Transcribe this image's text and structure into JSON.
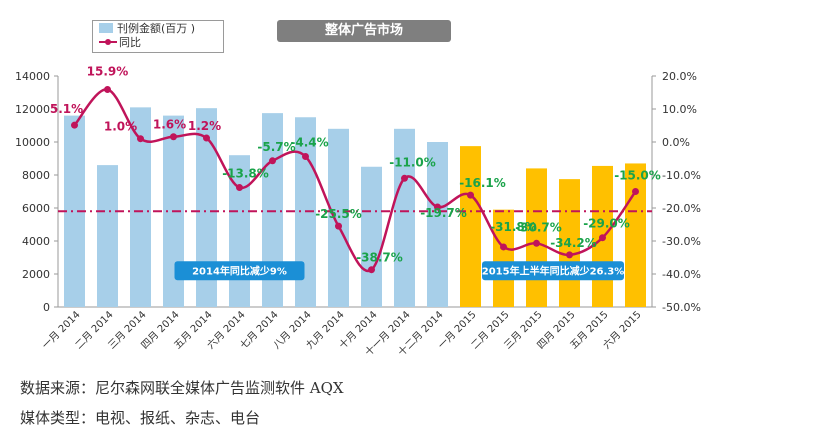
{
  "chart_data": {
    "type": "bar+line",
    "title": "整体广告市场",
    "categories": [
      "一月 2014",
      "二月 2014",
      "三月 2014",
      "四月 2014",
      "五月 2014",
      "六月 2014",
      "七月 2014",
      "八月 2014",
      "九月 2014",
      "十月 2014",
      "十一月 2014",
      "十二月 2014",
      "一月 2015",
      "二月 2015",
      "三月 2015",
      "四月 2015",
      "五月 2015",
      "六月 2015"
    ],
    "series": [
      {
        "name": "刊例金额(百万 )",
        "type": "bar",
        "axis": "left",
        "values": [
          11600,
          8600,
          12100,
          11600,
          12050,
          9200,
          11750,
          11500,
          10800,
          8500,
          10800,
          10000,
          9750,
          5900,
          8400,
          7750,
          8550,
          8700
        ],
        "colors": [
          "#a7cfe9",
          "#a7cfe9",
          "#a7cfe9",
          "#a7cfe9",
          "#a7cfe9",
          "#a7cfe9",
          "#a7cfe9",
          "#a7cfe9",
          "#a7cfe9",
          "#a7cfe9",
          "#a7cfe9",
          "#a7cfe9",
          "#ffc000",
          "#ffc000",
          "#ffc000",
          "#ffc000",
          "#ffc000",
          "#ffc000"
        ]
      },
      {
        "name": "同比",
        "type": "line",
        "axis": "right",
        "color": "#c0145a",
        "values": [
          5.1,
          15.9,
          1.0,
          1.6,
          1.2,
          -13.8,
          -5.7,
          -4.4,
          -25.5,
          -38.7,
          -11.0,
          -19.7,
          -16.1,
          -31.8,
          -30.7,
          -34.2,
          -29.0,
          -15.0
        ],
        "labels": [
          "5.1%",
          "15.9%",
          "1.0%",
          "1.6%",
          "1.2%",
          "-13.8%",
          "-5.7%",
          "-4.4%",
          "-25.5%",
          "-38.7%",
          "-11.0%",
          "-19.7%",
          "-16.1%",
          "-31.8%",
          "-30.7%",
          "-34.2%",
          "-29.0%",
          "-15.0%"
        ],
        "label_colors": [
          "#c0145a",
          "#c0145a",
          "#c0145a",
          "#c0145a",
          "#c0145a",
          "#1aa34a",
          "#1aa34a",
          "#1aa34a",
          "#1aa34a",
          "#1aa34a",
          "#1aa34a",
          "#1aa34a",
          "#1aa34a",
          "#1aa34a",
          "#1aa34a",
          "#1aa34a",
          "#1aa34a",
          "#1aa34a"
        ]
      }
    ],
    "left_axis": {
      "min": 0,
      "max": 14000,
      "ticks": [
        "0",
        "2000",
        "4000",
        "6000",
        "8000",
        "10000",
        "12000",
        "14000"
      ]
    },
    "right_axis": {
      "min": -50,
      "max": 20,
      "ticks": [
        "-50.0%",
        "-40.0%",
        "-30.0%",
        "-20.0%",
        "-10.0%",
        "0.0%",
        "10.0%",
        "20.0%"
      ]
    },
    "reference_line": {
      "axis": "right",
      "value": -21,
      "color": "#c0145a"
    },
    "annotations": [
      {
        "text": "2014年同比减少9%",
        "at_category": 5,
        "y_right": -39
      },
      {
        "text": "2015年上半年同比减少26.3%",
        "at_category": 14.5,
        "y_right": -39
      }
    ],
    "legend_position": "top-left",
    "grid": false
  },
  "footer": {
    "source": "数据来源：尼尔森网联全媒体广告监测软件 AQX",
    "media": "媒体类型：电视、报纸、杂志、电台"
  }
}
